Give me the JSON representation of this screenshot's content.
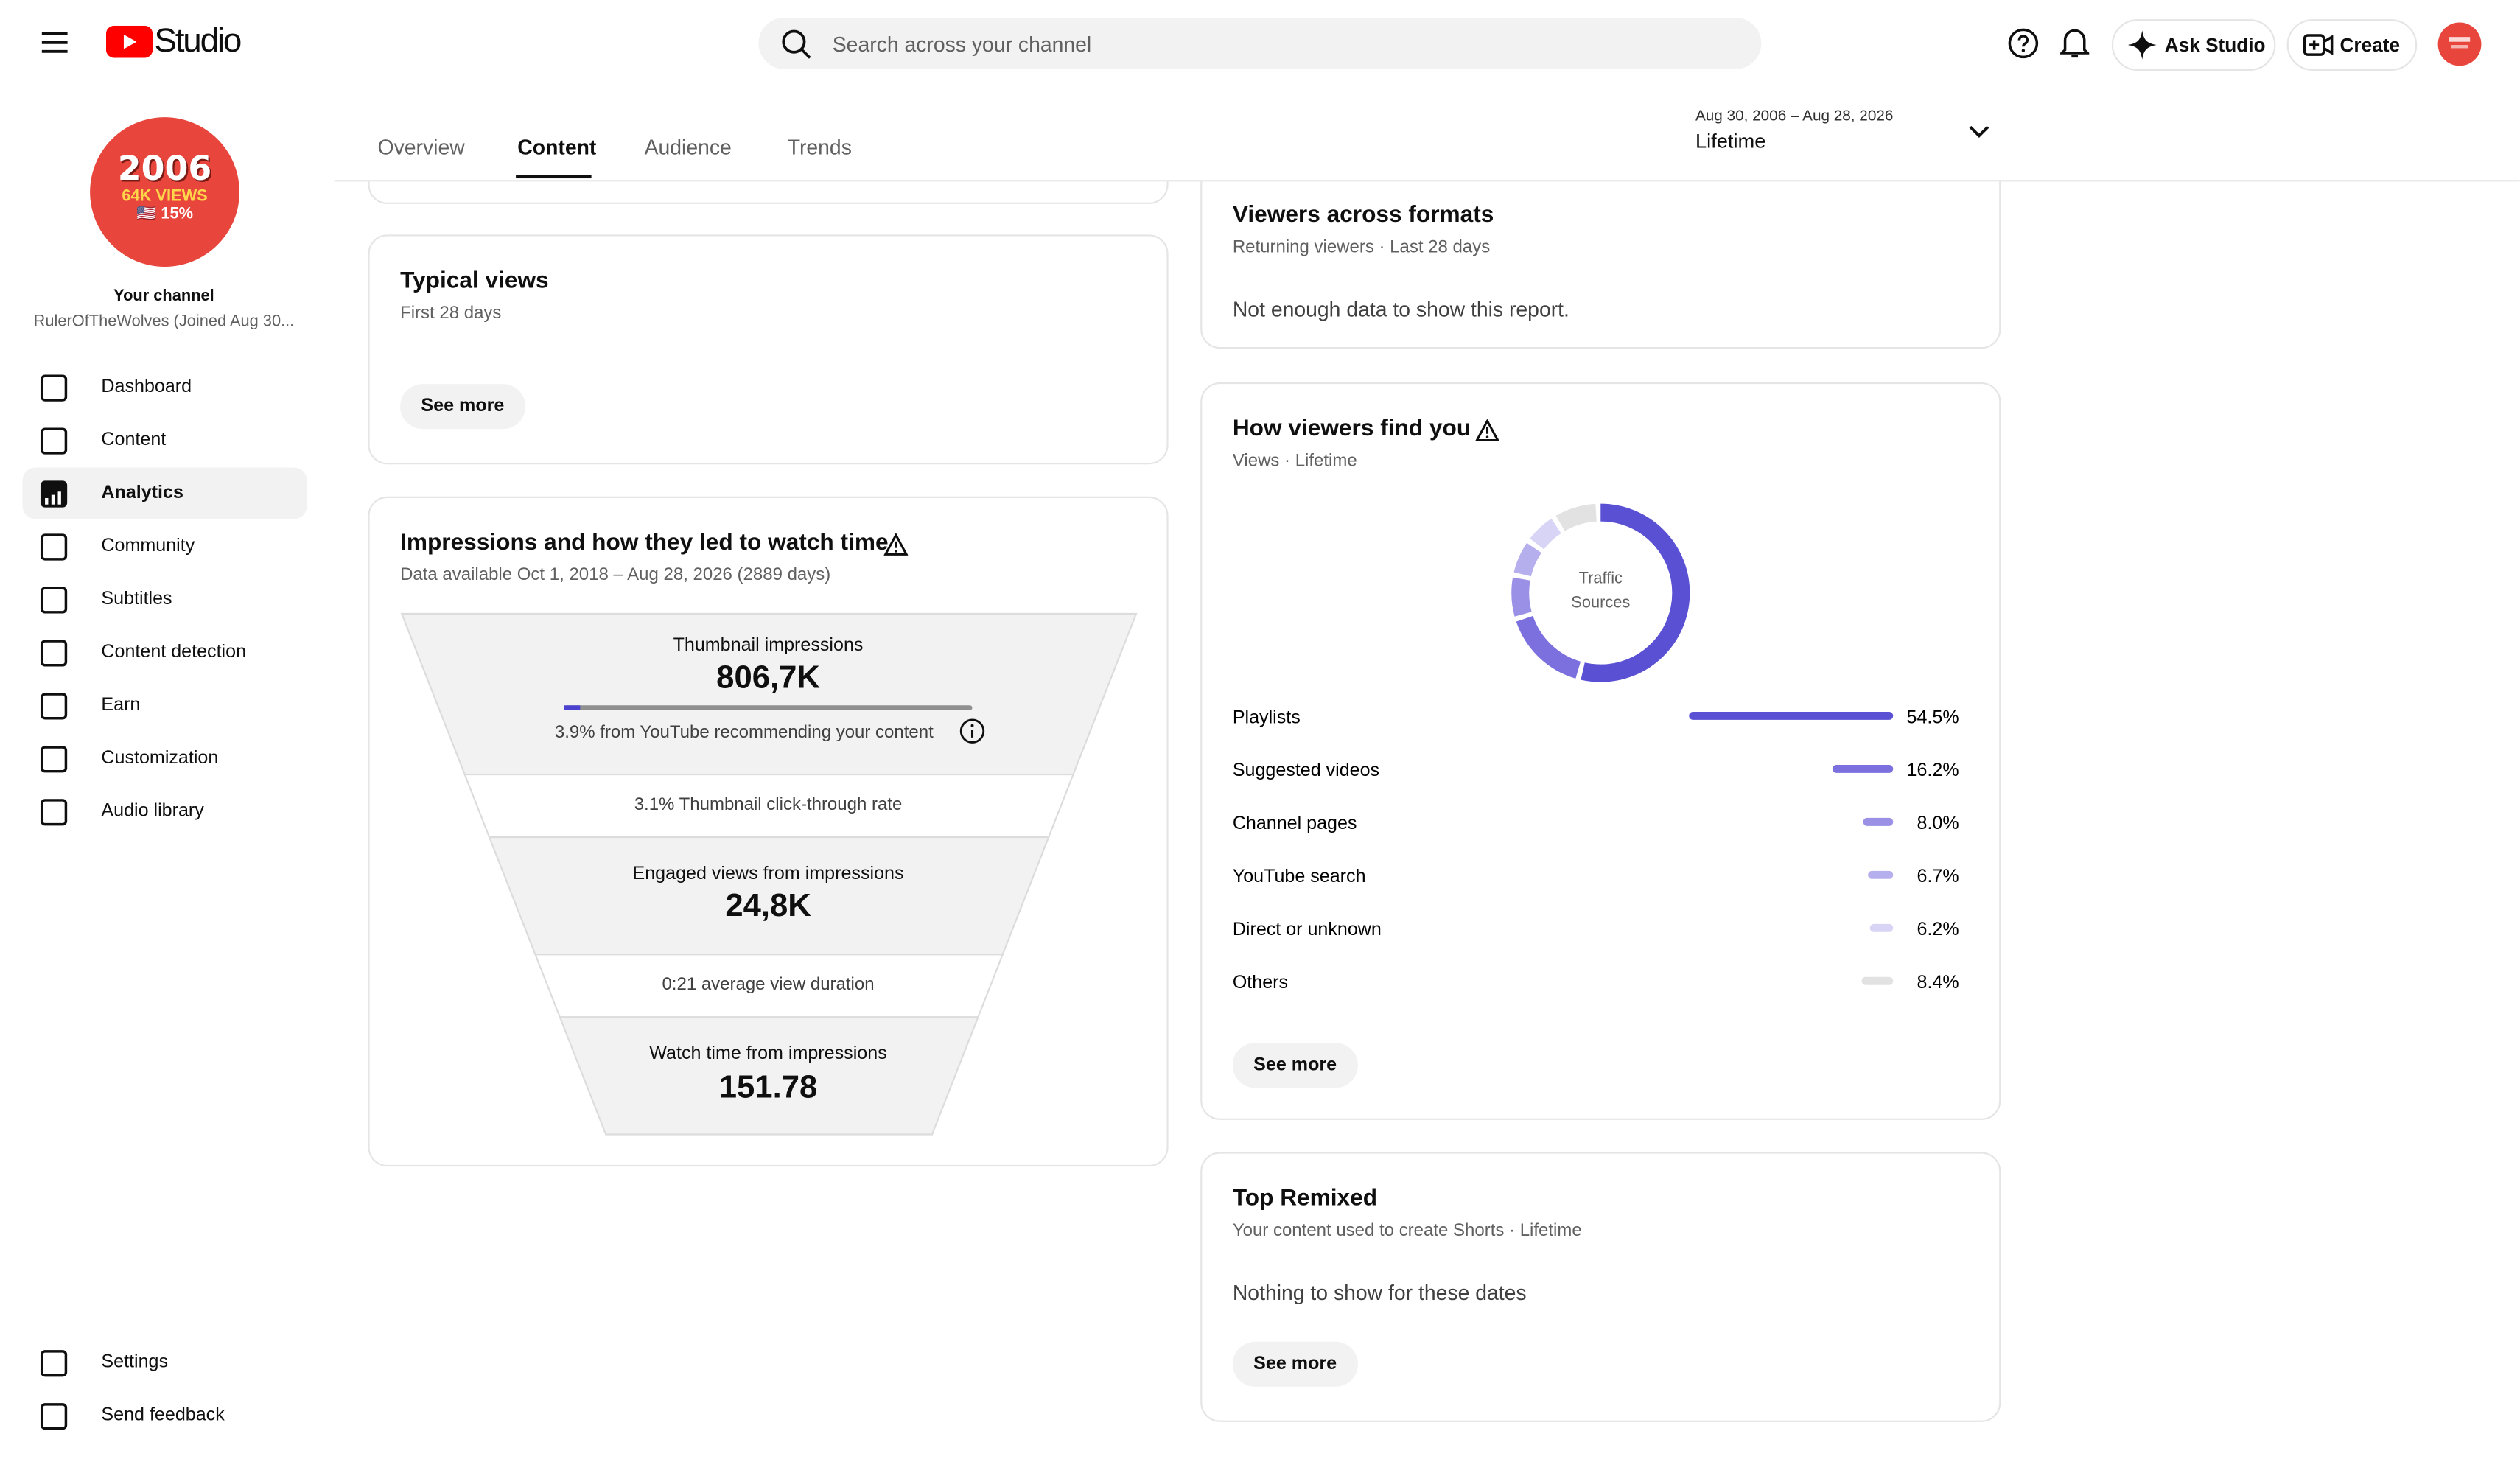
{
  "header": {
    "logo": "Studio",
    "search_placeholder": "Search across your channel",
    "ask": "Ask Studio",
    "create": "Create"
  },
  "channel": {
    "avatar_lines": [
      "2006",
      "64K VIEWS",
      "🇺🇸 15%"
    ],
    "label": "Your channel",
    "name": "RulerOfTheWolves (Joined Aug 30..."
  },
  "nav": [
    "Dashboard",
    "Content",
    "Analytics",
    "Community",
    "Subtitles",
    "Content detection",
    "Earn",
    "Customization",
    "Audio library"
  ],
  "nav_bottom": [
    "Settings",
    "Send feedback"
  ],
  "tabs": [
    "Overview",
    "Content",
    "Audience",
    "Trends"
  ],
  "date_range": {
    "range": "Aug 30, 2006 – Aug 28, 2026",
    "label": "Lifetime"
  },
  "typical_views": {
    "title": "Typical views",
    "subtitle": "First 28 days",
    "button": "See more"
  },
  "impressions": {
    "title": "Impressions and how they led to watch time",
    "subtitle": "Data available Oct 1, 2018 – Aug 28, 2026 (2889 days)",
    "thumbnail_label": "Thumbnail impressions",
    "thumbnail_value": "806,7K",
    "recommend_note": "3.9% from YouTube recommending your content",
    "ctr": "3.1% Thumbnail click-through rate",
    "engaged_label": "Engaged views from impressions",
    "engaged_value": "24,8K",
    "avg_duration": "0:21 average view duration",
    "watch_label": "Watch time from impressions",
    "watch_value": "151.78"
  },
  "viewers_formats": {
    "title": "Viewers across formats",
    "subtitle": "Returning viewers · Last 28 days",
    "message": "Not enough data to show this report."
  },
  "how_viewers_find_you": {
    "title": "How viewers find you",
    "subtitle": "Views · Lifetime",
    "center_label": [
      "Traffic",
      "Sources"
    ],
    "categories": [
      "Playlists",
      "Suggested videos",
      "Channel pages",
      "YouTube search",
      "Direct or unknown",
      "Others"
    ],
    "values": [
      54.5,
      16.2,
      8.0,
      6.7,
      6.2,
      8.4
    ],
    "value_labels": [
      "54.5%",
      "16.2%",
      "8.0%",
      "6.7%",
      "6.2%",
      "8.4%"
    ],
    "colors": [
      "#5a50d4",
      "#7b70de",
      "#9a91e6",
      "#b6afee",
      "#d8d4f6",
      "#e2e2e2"
    ],
    "button": "See more"
  },
  "top_remixed": {
    "title": "Top Remixed",
    "subtitle": "Your content used to create Shorts · Lifetime",
    "message": "Nothing to show for these dates",
    "button": "See more"
  }
}
